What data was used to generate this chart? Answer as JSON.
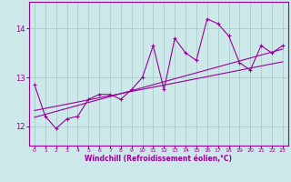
{
  "xlabel": "Windchill (Refroidissement éolien,°C)",
  "xlim": [
    -0.5,
    23.5
  ],
  "ylim": [
    11.6,
    14.55
  ],
  "yticks": [
    12,
    13,
    14
  ],
  "xticks": [
    0,
    1,
    2,
    3,
    4,
    5,
    6,
    7,
    8,
    9,
    10,
    11,
    12,
    13,
    14,
    15,
    16,
    17,
    18,
    19,
    20,
    21,
    22,
    23
  ],
  "bg_color": "#cce8e8",
  "grid_color": "#aacccc",
  "line_color": "#990099",
  "y_main": [
    12.85,
    12.2,
    11.95,
    12.15,
    12.2,
    12.55,
    12.65,
    12.65,
    12.55,
    12.75,
    13.0,
    13.65,
    12.75,
    13.8,
    13.5,
    13.35,
    14.2,
    14.1,
    13.85,
    13.3,
    13.15,
    13.65,
    13.5,
    13.65
  ],
  "trend1": [
    12.18,
    13.58
  ],
  "trend2": [
    12.32,
    13.32
  ]
}
